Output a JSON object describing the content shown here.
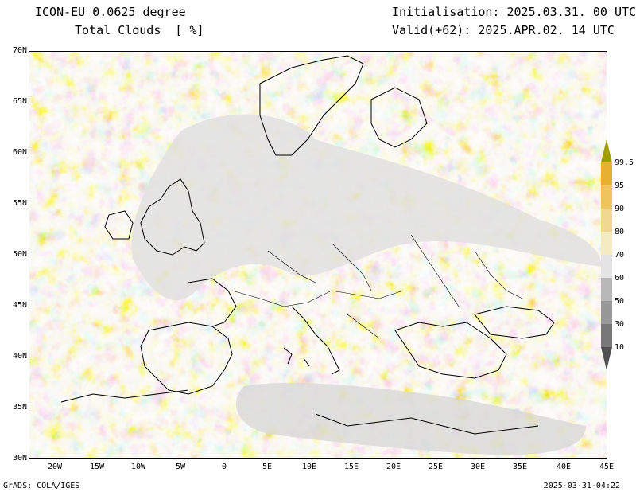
{
  "header": {
    "model": "ICON-EU 0.0625 degree",
    "variable": "Total Clouds  [ %]",
    "init": "Initialisation: 2025.03.31. 00 UTC",
    "valid": "Valid(+62): 2025.APR.02. 14 UTC"
  },
  "axes": {
    "lat_ticks": [
      "70N",
      "65N",
      "60N",
      "55N",
      "50N",
      "45N",
      "40N",
      "35N",
      "30N"
    ],
    "lon_ticks": [
      "20W",
      "15W",
      "10W",
      "5W",
      "0",
      "5E",
      "10E",
      "15E",
      "20E",
      "25E",
      "30E",
      "35E",
      "40E",
      "45E"
    ]
  },
  "colorbar": {
    "labels": [
      "99.5",
      "95",
      "90",
      "80",
      "70",
      "60",
      "50",
      "30",
      "10"
    ],
    "colors": [
      "#a09c00",
      "#e8b030",
      "#f0c45c",
      "#f0d890",
      "#f4ecc0",
      "#e4e4e4",
      "#b8b8b8",
      "#989898",
      "#787878",
      "#505050"
    ]
  },
  "footer": {
    "left": "GrADS: COLA/IGES",
    "right": "2025-03-31-04:22"
  }
}
